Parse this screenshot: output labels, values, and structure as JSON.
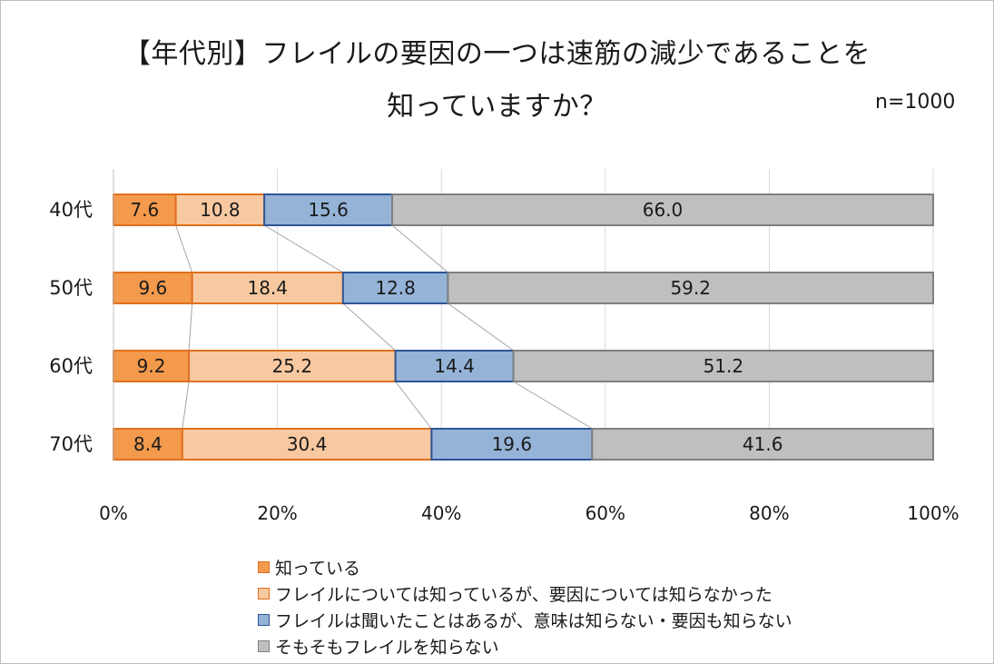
{
  "title_line1": "【年代別】フレイルの要因の一つは速筋の減少であることを",
  "title_line2": "知っていますか？",
  "sample_size": "n=1000",
  "chart_data": {
    "type": "bar",
    "orientation": "horizontal",
    "stacked": true,
    "percent_stacked": true,
    "categories": [
      "40代",
      "50代",
      "60代",
      "70代"
    ],
    "series": [
      {
        "name": "知っている",
        "values": [
          7.6,
          9.6,
          9.2,
          8.4
        ],
        "fill": "#f39a4c",
        "stroke": "#e07020"
      },
      {
        "name": "フレイルについては知っているが、要因については知らなかった",
        "values": [
          10.8,
          18.4,
          25.2,
          30.4
        ],
        "fill": "#f8c9a0",
        "stroke": "#e07020"
      },
      {
        "name": "フレイルは聞いたことはあるが、意味は知らない・要因も知らない",
        "values": [
          15.6,
          12.8,
          14.4,
          19.6
        ],
        "fill": "#95b3d7",
        "stroke": "#2f5597"
      },
      {
        "name": "そもそもフレイルを知らない",
        "values": [
          66.0,
          59.2,
          51.2,
          41.6
        ],
        "fill": "#bfbfbf",
        "stroke": "#808080"
      }
    ],
    "value_labels": [
      [
        "7.6",
        "10.8",
        "15.6",
        "66.0"
      ],
      [
        "9.6",
        "18.4",
        "12.8",
        "59.2"
      ],
      [
        "9.2",
        "25.2",
        "14.4",
        "51.2"
      ],
      [
        "8.4",
        "30.4",
        "19.6",
        "41.6"
      ]
    ],
    "xlim": [
      0,
      100
    ],
    "x_ticks": [
      "0%",
      "20%",
      "40%",
      "60%",
      "80%",
      "100%"
    ],
    "series_lines": true,
    "grid": true,
    "legend_position": "bottom"
  }
}
